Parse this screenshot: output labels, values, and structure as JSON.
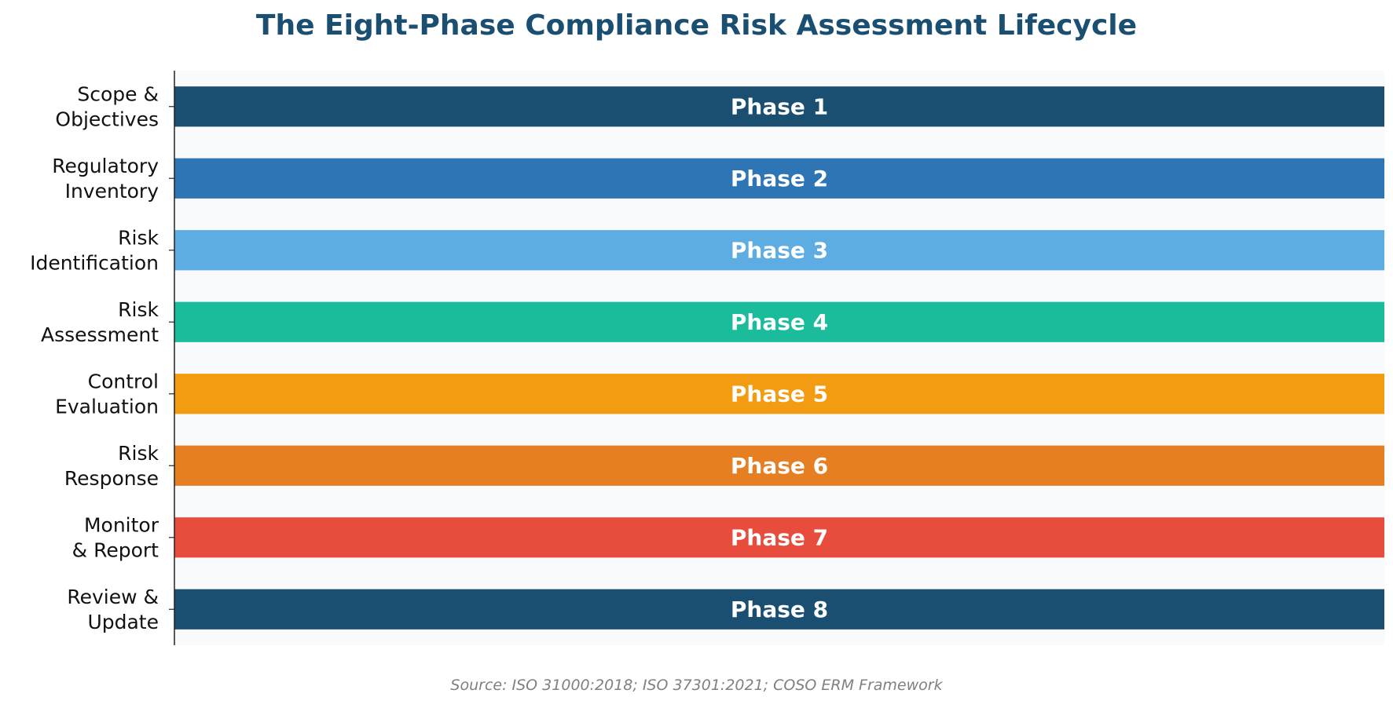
{
  "chart_data": {
    "type": "bar",
    "orientation": "horizontal",
    "title": "The Eight-Phase Compliance Risk Assessment Lifecycle",
    "xlabel": "",
    "ylabel": "",
    "categories": [
      [
        "Scope &",
        "Objectives"
      ],
      [
        "Regulatory",
        "Inventory"
      ],
      [
        "Risk",
        "Identification"
      ],
      [
        "Risk",
        "Assessment"
      ],
      [
        "Control",
        "Evaluation"
      ],
      [
        "Risk",
        "Response"
      ],
      [
        "Monitor",
        "& Report"
      ],
      [
        "Review &",
        "Update"
      ]
    ],
    "values": [
      1,
      1,
      1,
      1,
      1,
      1,
      1,
      1
    ],
    "bar_labels": [
      "Phase 1",
      "Phase 2",
      "Phase 3",
      "Phase 4",
      "Phase 5",
      "Phase 6",
      "Phase 7",
      "Phase 8"
    ],
    "colors": [
      "#1b4f72",
      "#2e75b6",
      "#5dade2",
      "#1abc9c",
      "#f39c12",
      "#e67e22",
      "#e74c3c",
      "#1b4f72"
    ],
    "xlim": [
      0,
      1
    ],
    "grid": false,
    "plot_background": "#f8fafc",
    "source": "Source: ISO 31000:2018; ISO 37301:2021; COSO ERM Framework"
  }
}
